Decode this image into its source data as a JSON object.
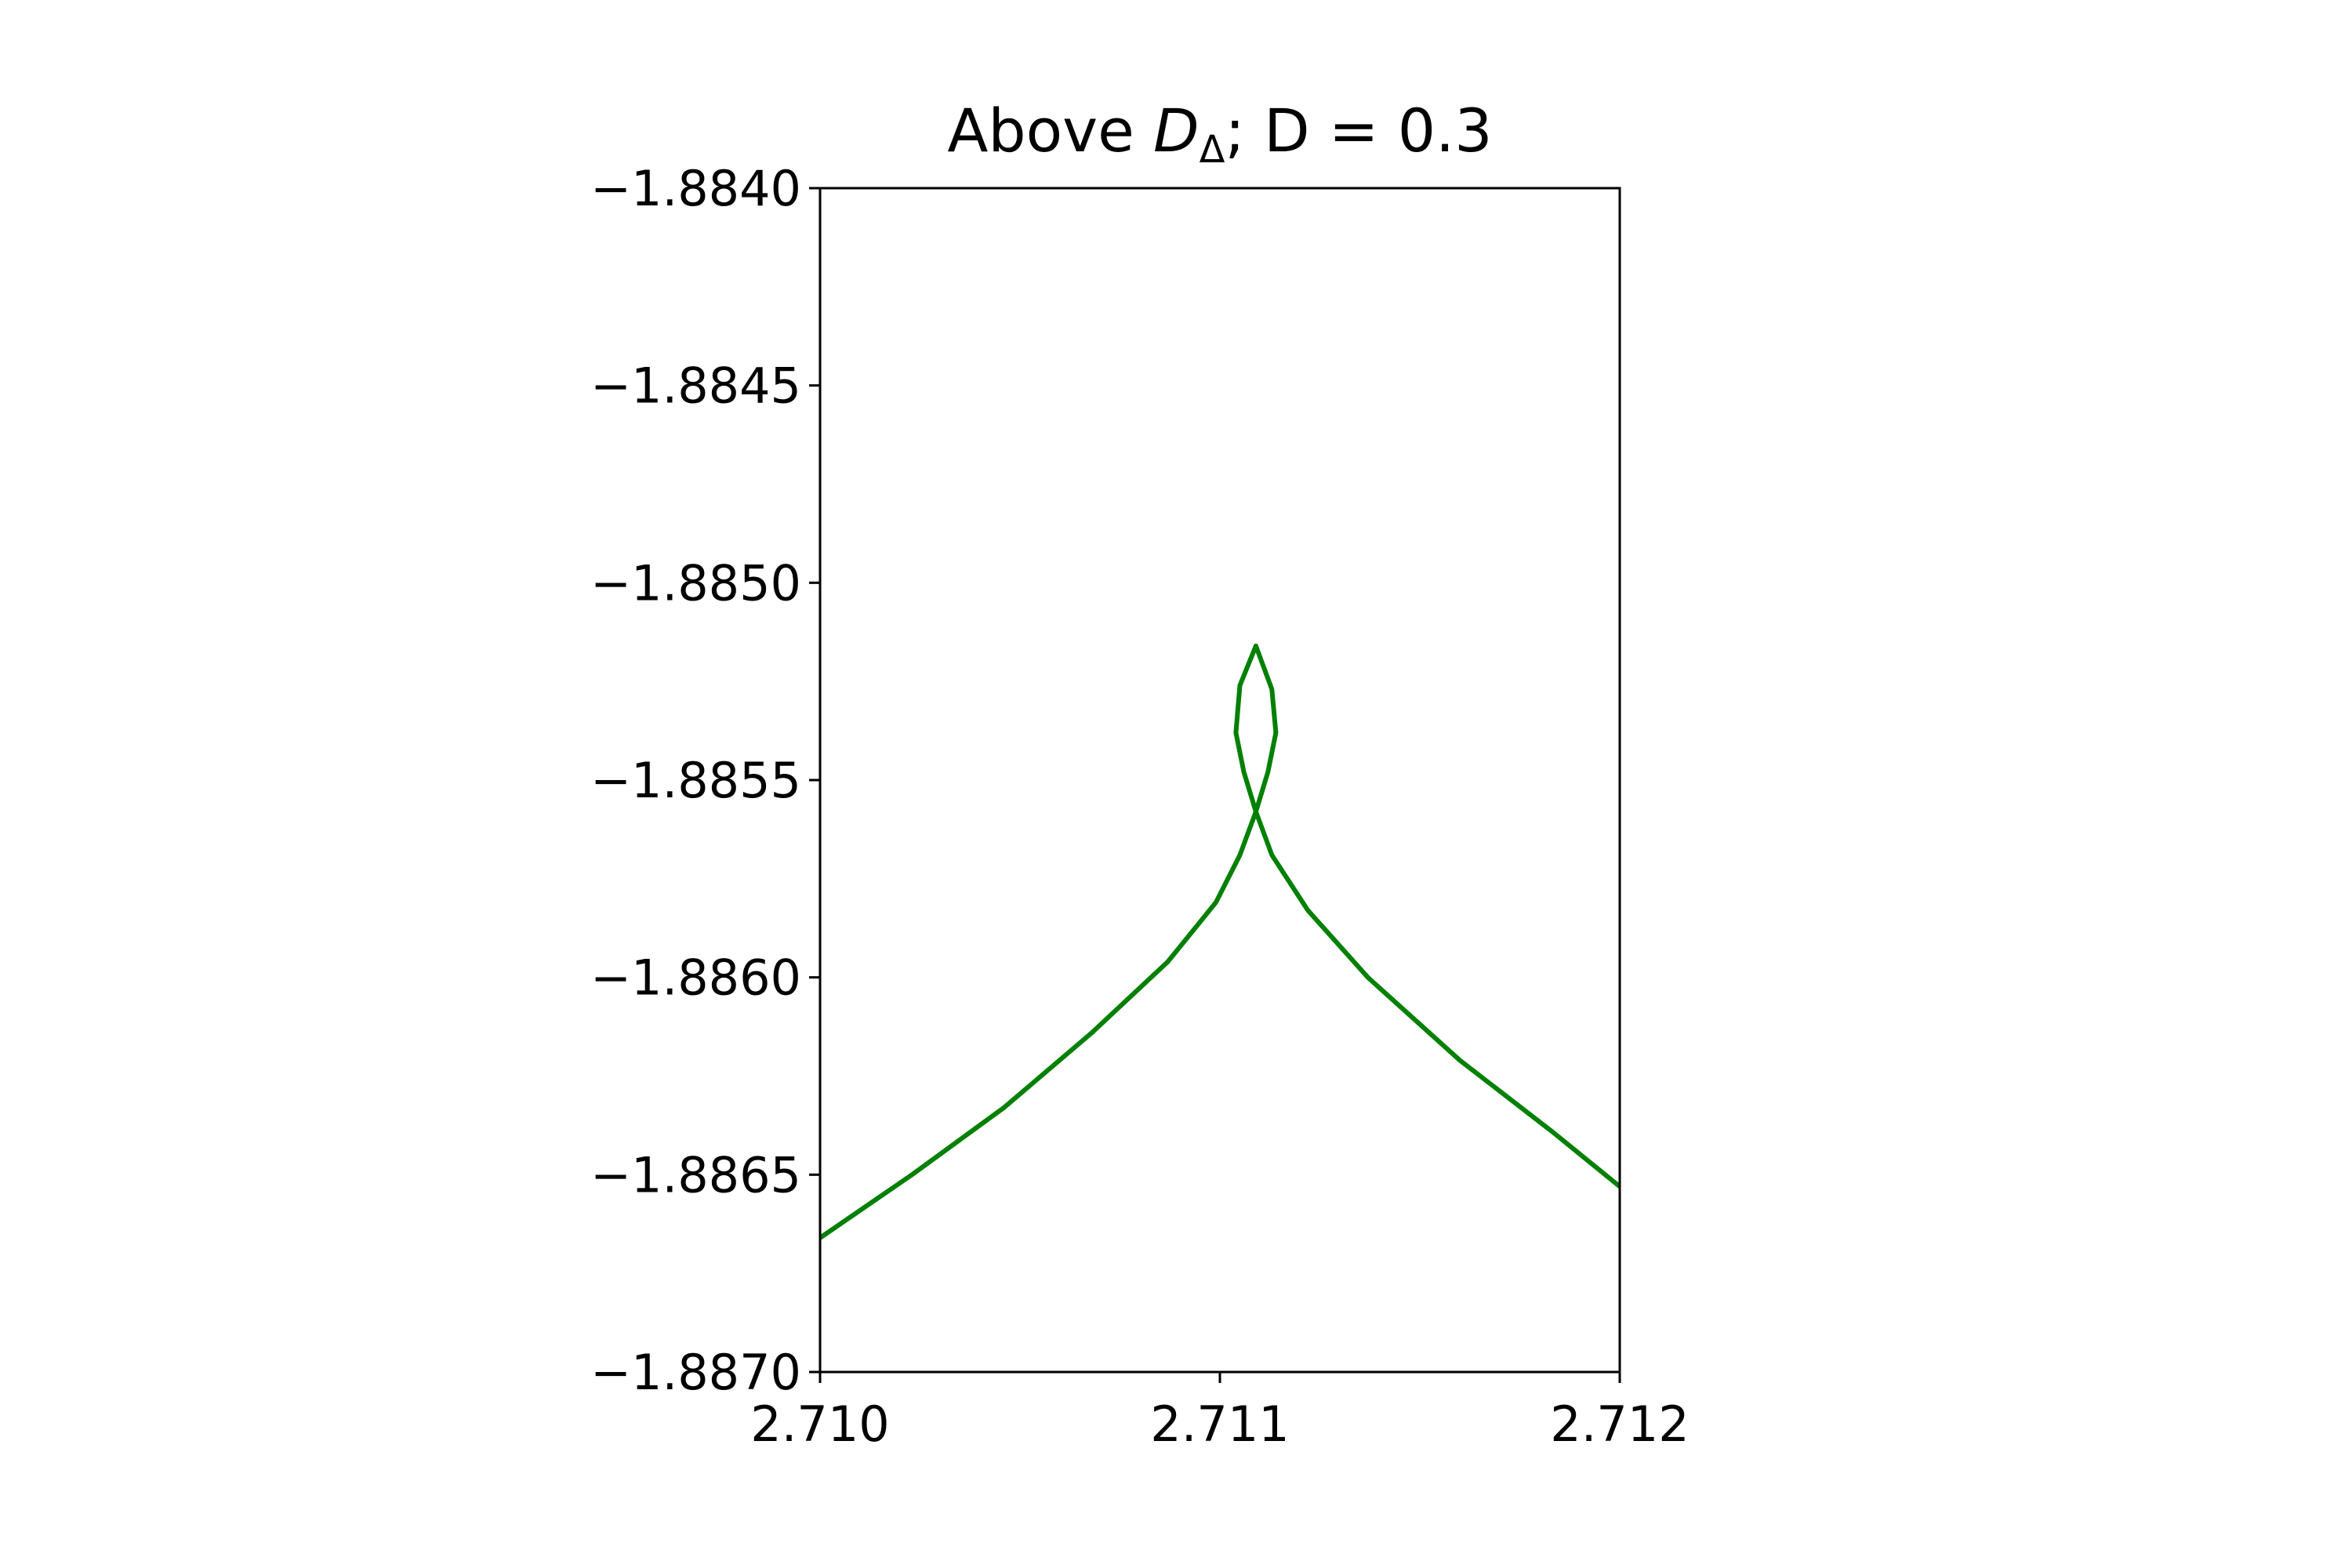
{
  "chart_data": {
    "type": "line",
    "title_parts": [
      "Above ",
      "D",
      "Δ",
      "; D = 0.3"
    ],
    "x": [
      2.71,
      2.71023,
      2.71046,
      2.71068,
      2.71087,
      2.71099,
      2.71105,
      2.71109,
      2.71112,
      2.71114,
      2.71113,
      2.71109,
      2.71105,
      2.71104,
      2.71106,
      2.71109,
      2.71113,
      2.71122,
      2.71137,
      2.7116,
      2.71183,
      2.712
    ],
    "series": [
      {
        "color": "#008000",
        "values": [
          -1.88666,
          -1.8865,
          -1.88633,
          -1.88614,
          -1.88596,
          -1.88581,
          -1.88569,
          -1.88558,
          -1.88548,
          -1.88538,
          -1.88527,
          -1.88516,
          -1.88526,
          -1.88538,
          -1.88548,
          -1.88558,
          -1.88569,
          -1.88583,
          -1.886,
          -1.88621,
          -1.88639,
          -1.88653
        ]
      }
    ],
    "xlim": [
      2.71,
      2.712
    ],
    "xticks": [
      {
        "value": 2.71,
        "label": "2.710"
      },
      2.711,
      2.712
    ],
    "ylim": [
      -1.887,
      -1.884
    ],
    "yticks": [
      {
        "value": -1.884,
        "label": "−1.8840"
      },
      {
        "value": -1.8845,
        "label": "−1.8845"
      },
      {
        "value": -1.885,
        "label": "−1.8850"
      },
      {
        "value": -1.8855,
        "label": "−1.8855"
      },
      {
        "value": -1.886,
        "label": "−1.8860"
      },
      {
        "value": -1.8865,
        "label": "−1.8865"
      },
      {
        "value": -1.887,
        "label": "−1.8870"
      }
    ]
  }
}
